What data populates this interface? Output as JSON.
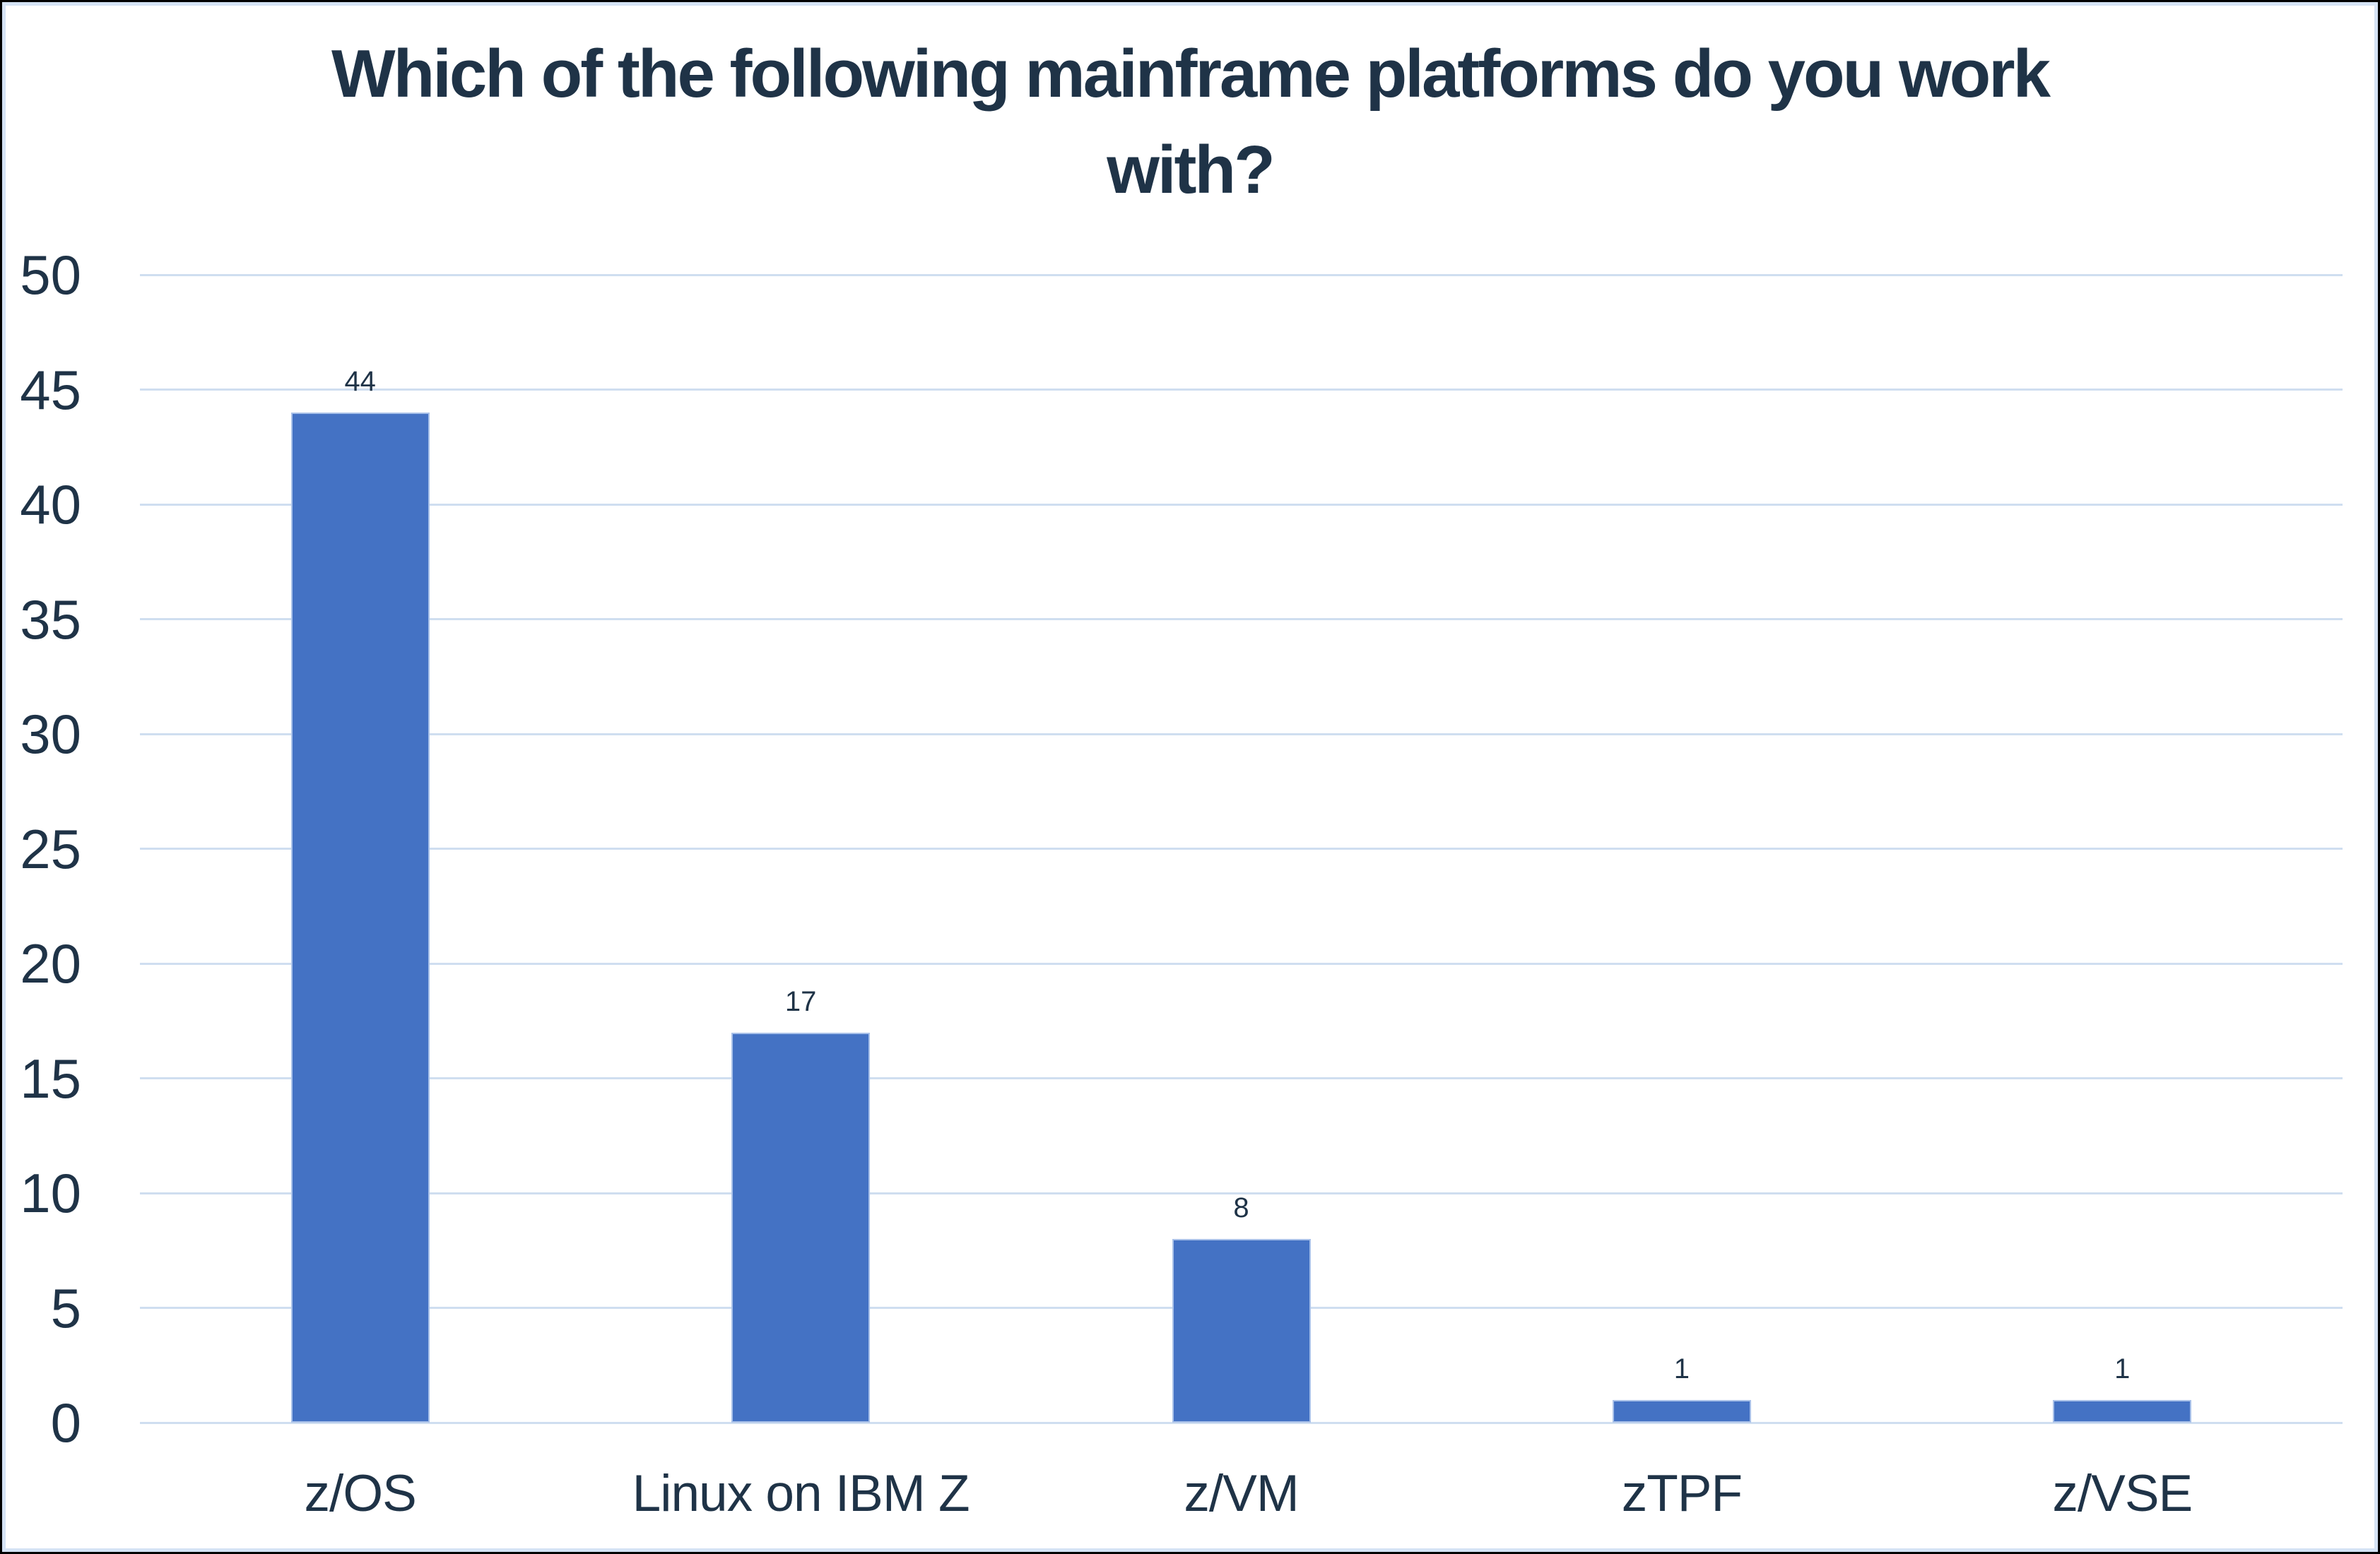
{
  "chart_data": {
    "type": "bar",
    "title": "Which of the following mainframe platforms do you work with?",
    "title_lines": [
      "Which of the following mainframe platforms do you work",
      "with?"
    ],
    "categories": [
      "z/OS",
      "Linux on IBM Z",
      "z/VM",
      "zTPF",
      "z/VSE"
    ],
    "values": [
      44,
      17,
      8,
      1,
      1
    ],
    "data_labels": [
      "44",
      "17",
      "8",
      "1",
      "1"
    ],
    "xlabel": "",
    "ylabel": "",
    "ylim": [
      0,
      50
    ],
    "ytick_step": 5,
    "yticks": [
      0,
      5,
      10,
      15,
      20,
      25,
      30,
      35,
      40,
      45,
      50
    ],
    "grid": true,
    "legend": false,
    "colors": {
      "bar_fill": "#4472C4",
      "bar_border": "#A9C1E9",
      "grid_line": "#CFDEF0",
      "text": "#1F3347",
      "background": "#FFFFFF",
      "inner_border": "#D5E3F5",
      "outer_border": "#000000"
    }
  }
}
